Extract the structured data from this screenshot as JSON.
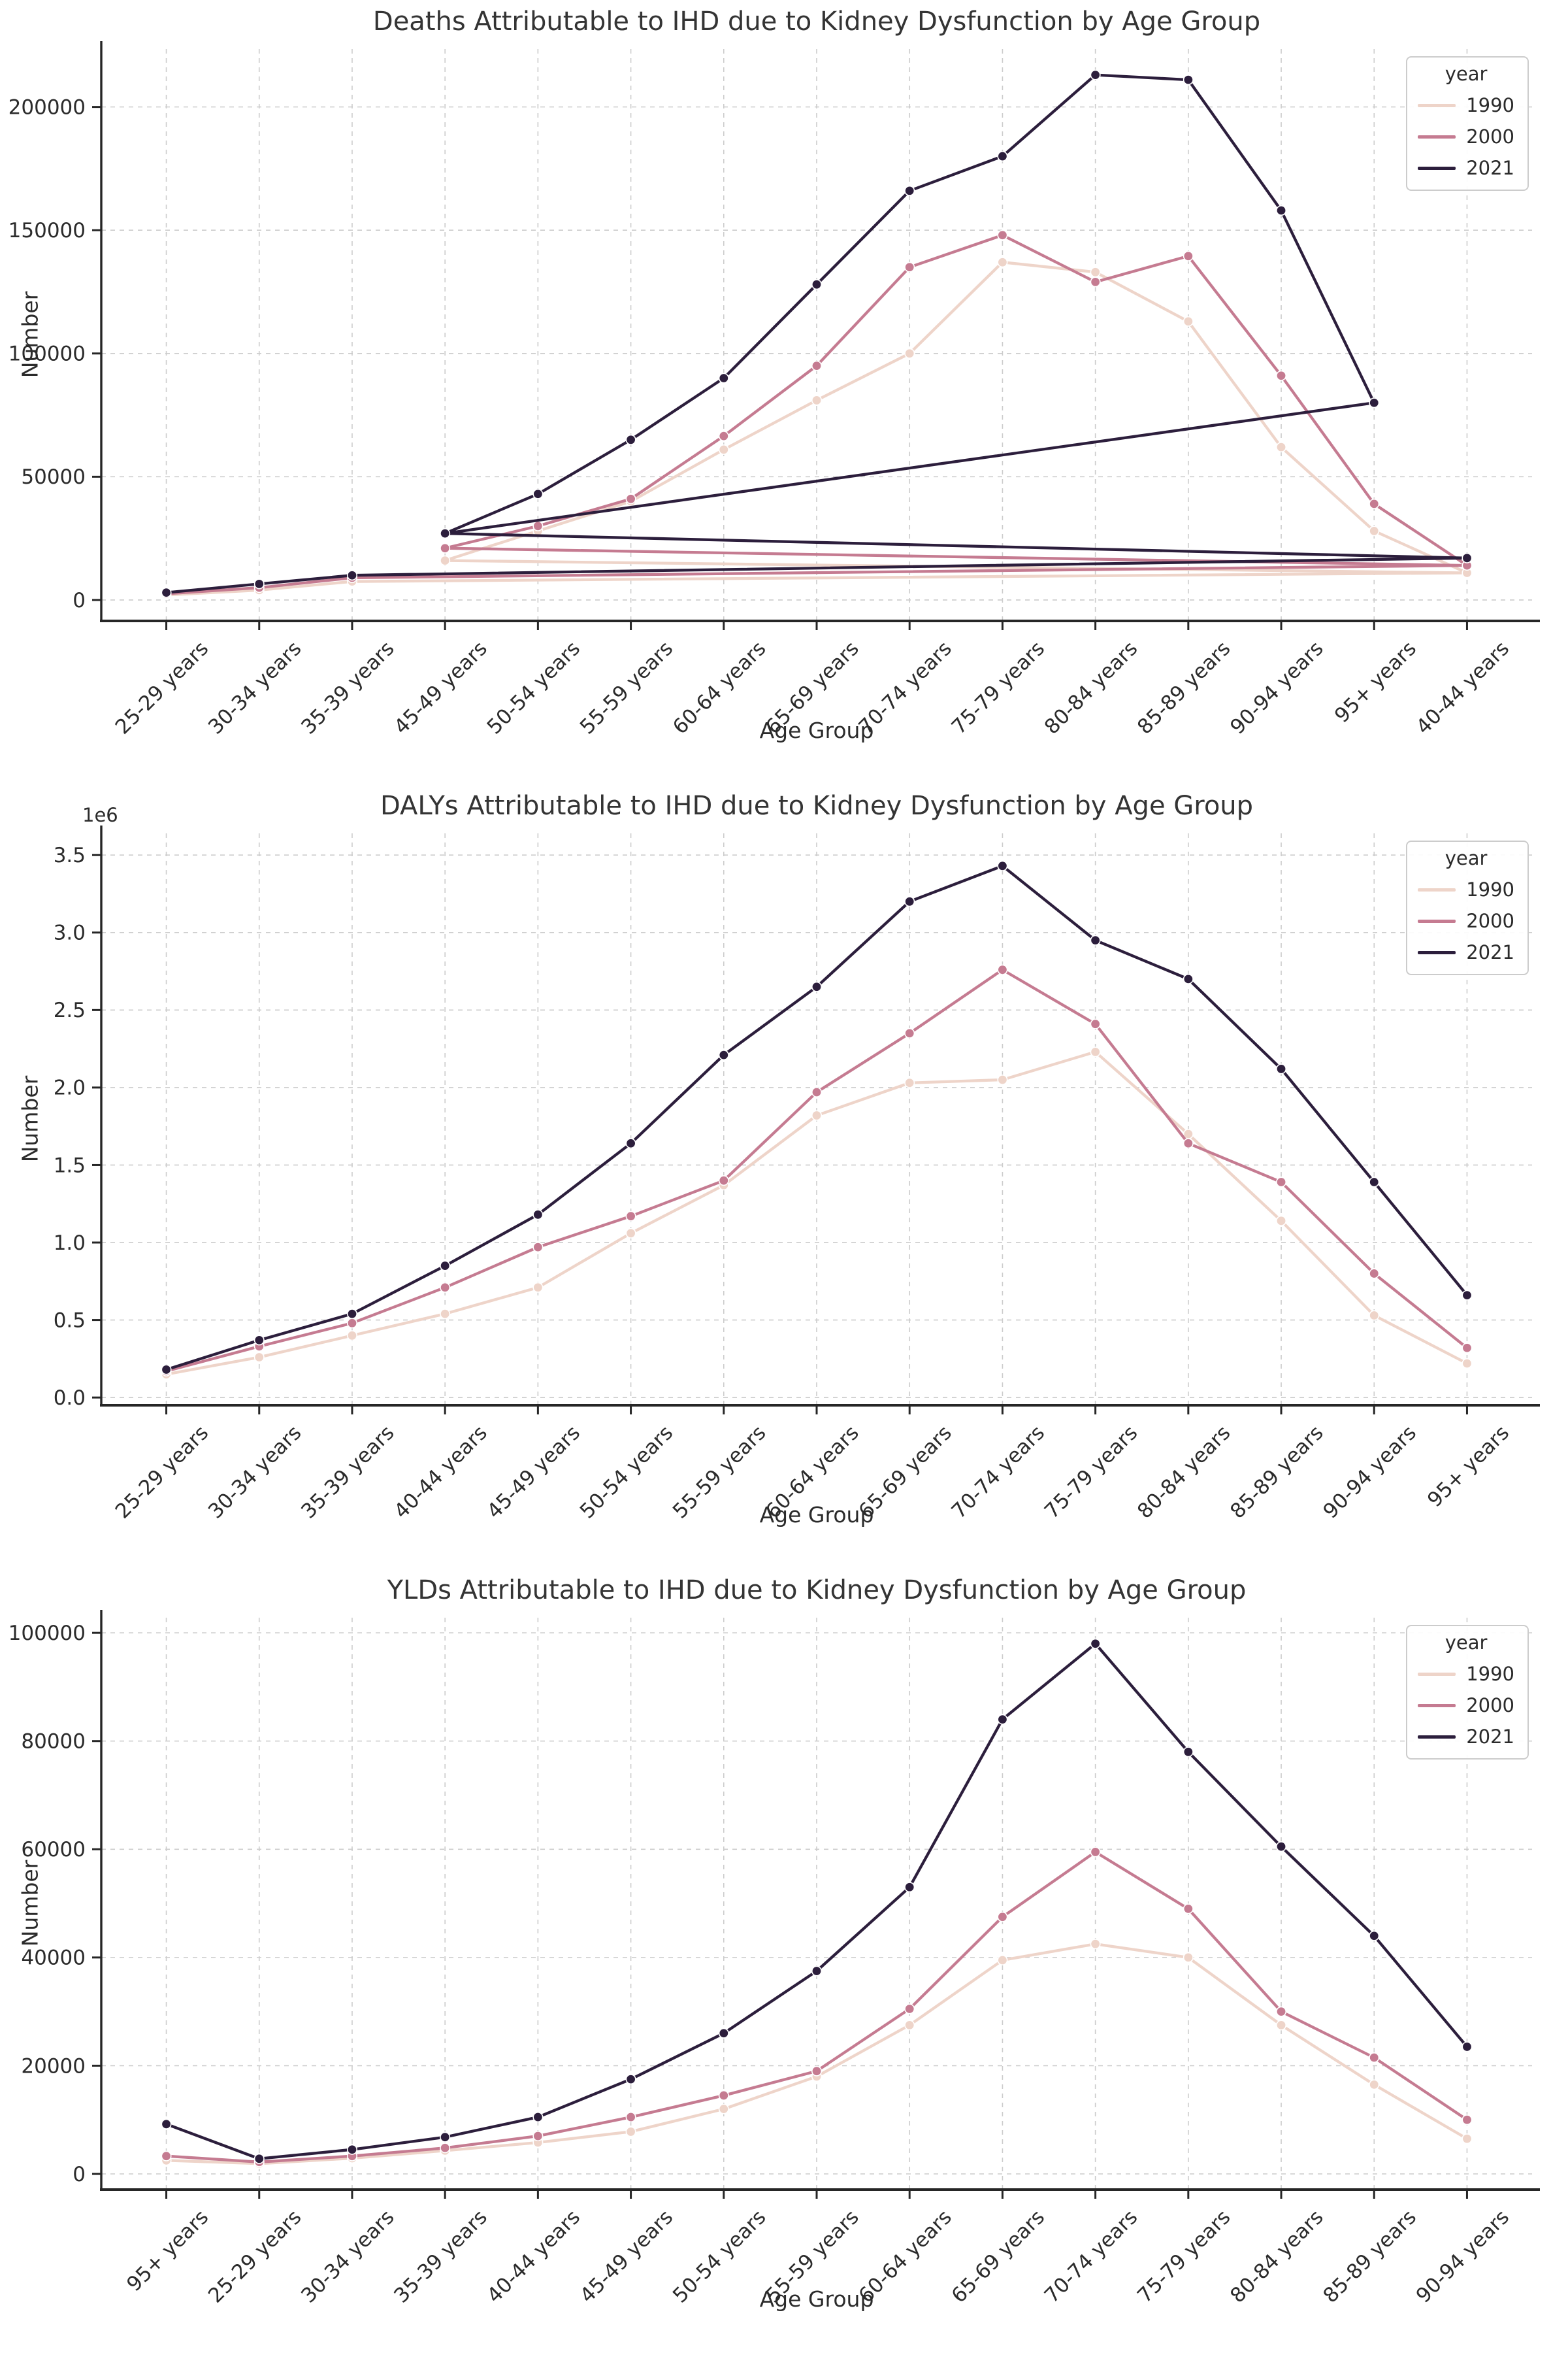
{
  "legend_title": "year",
  "colors": {
    "series_1990": "#eed4c9",
    "series_2000": "#c57b91",
    "series_2021": "#2c1e3c",
    "grid": "#cccccc",
    "spine": "#262626",
    "text": "#2b2b2b",
    "title": "#343434",
    "background": "#ffffff"
  },
  "chart_data": [
    {
      "type": "line",
      "title": "Deaths Attributable to IHD due to Kidney Dysfunction by Age Group",
      "xlabel": "Age Group",
      "ylabel": "Number",
      "y_offset_label": "",
      "grid": true,
      "legend_position": "upper right",
      "categories": [
        "25-29 years",
        "30-34 years",
        "35-39 years",
        "45-49 years",
        "50-54 years",
        "55-59 years",
        "60-64 years",
        "65-69 years",
        "70-74 years",
        "75-79 years",
        "80-84 years",
        "85-89 years",
        "90-94 years",
        "95+ years",
        "40-44 years"
      ],
      "y_ticks": [
        "0",
        "50000",
        "100000",
        "150000",
        "200000"
      ],
      "y_tick_values": [
        0,
        50000,
        100000,
        150000,
        200000
      ],
      "ylim": [
        -8500,
        223500
      ],
      "series": [
        {
          "name": "1990",
          "color_key": "series_1990",
          "values": [
            2000,
            4000,
            7500,
            16000,
            28000,
            40000,
            61000,
            81000,
            100000,
            137000,
            133000,
            113000,
            62000,
            28000,
            11000
          ],
          "path": [
            0,
            1,
            2,
            14,
            3,
            4,
            5,
            6,
            7,
            8,
            9,
            10,
            11,
            12,
            13,
            14
          ]
        },
        {
          "name": "2000",
          "color_key": "series_2000",
          "values": [
            2500,
            5000,
            9000,
            21000,
            30000,
            41000,
            66500,
            95000,
            135000,
            148000,
            129000,
            139500,
            91000,
            39000,
            14000
          ],
          "path": [
            0,
            1,
            2,
            14,
            3,
            4,
            5,
            6,
            7,
            8,
            9,
            10,
            11,
            12,
            13,
            14
          ]
        },
        {
          "name": "2021",
          "color_key": "series_2021",
          "values": [
            3000,
            6500,
            10000,
            27000,
            43000,
            65000,
            90000,
            128000,
            166000,
            180000,
            213000,
            211000,
            158000,
            80000,
            17000
          ],
          "path": [
            0,
            1,
            2,
            14,
            3,
            13,
            12,
            11,
            10,
            9,
            8,
            7,
            6,
            5,
            4,
            3
          ]
        }
      ]
    },
    {
      "type": "line",
      "title": "DALYs Attributable to IHD due to Kidney Dysfunction by Age Group",
      "xlabel": "Age Group",
      "ylabel": "Number",
      "y_offset_label": "1e6",
      "grid": true,
      "legend_position": "upper right",
      "categories": [
        "25-29 years",
        "30-34 years",
        "35-39 years",
        "40-44 years",
        "45-49 years",
        "50-54 years",
        "55-59 years",
        "60-64 years",
        "65-69 years",
        "70-74 years",
        "75-79 years",
        "80-84 years",
        "85-89 years",
        "90-94 years",
        "95+ years"
      ],
      "y_ticks": [
        "0.0",
        "0.5",
        "1.0",
        "1.5",
        "2.0",
        "2.5",
        "3.0",
        "3.5"
      ],
      "y_tick_values": [
        0,
        0.5,
        1,
        1.5,
        2,
        2.5,
        3,
        3.5
      ],
      "ylim": [
        -0.05,
        3.64
      ],
      "series": [
        {
          "name": "1990",
          "color_key": "series_1990",
          "values": [
            0.15,
            0.26,
            0.4,
            0.54,
            0.71,
            1.06,
            1.37,
            1.82,
            2.03,
            2.05,
            2.23,
            1.7,
            1.14,
            0.53,
            0.22
          ],
          "path": [
            0,
            1,
            2,
            3,
            4,
            5,
            6,
            7,
            8,
            9,
            10,
            11,
            12,
            13,
            14
          ]
        },
        {
          "name": "2000",
          "color_key": "series_2000",
          "values": [
            0.17,
            0.33,
            0.48,
            0.71,
            0.97,
            1.17,
            1.4,
            1.97,
            2.35,
            2.76,
            2.41,
            1.64,
            1.39,
            0.8,
            0.32
          ],
          "path": [
            0,
            1,
            2,
            3,
            4,
            5,
            6,
            7,
            8,
            9,
            10,
            11,
            12,
            13,
            14
          ]
        },
        {
          "name": "2021",
          "color_key": "series_2021",
          "values": [
            0.18,
            0.37,
            0.54,
            0.85,
            1.18,
            1.64,
            2.21,
            2.65,
            3.2,
            3.43,
            2.95,
            2.7,
            2.12,
            1.39,
            0.66
          ],
          "path": [
            0,
            1,
            2,
            3,
            4,
            5,
            6,
            7,
            8,
            9,
            10,
            11,
            12,
            13,
            14
          ]
        }
      ]
    },
    {
      "type": "line",
      "title": "YLDs Attributable to IHD due to Kidney Dysfunction by Age Group",
      "xlabel": "Age Group",
      "ylabel": "Number",
      "y_offset_label": "",
      "grid": true,
      "legend_position": "upper right",
      "categories": [
        "95+ years",
        "25-29 years",
        "30-34 years",
        "35-39 years",
        "40-44 years",
        "45-49 years",
        "50-54 years",
        "55-59 years",
        "60-64 years",
        "65-69 years",
        "70-74 years",
        "75-79 years",
        "80-84 years",
        "85-89 years",
        "90-94 years"
      ],
      "y_ticks": [
        "0",
        "20000",
        "40000",
        "60000",
        "80000",
        "100000"
      ],
      "y_tick_values": [
        0,
        20000,
        40000,
        60000,
        80000,
        100000
      ],
      "ylim": [
        -2900,
        102800
      ],
      "series": [
        {
          "name": "1990",
          "color_key": "series_1990",
          "values": [
            2500,
            1900,
            2900,
            4300,
            5800,
            7800,
            12000,
            18000,
            27500,
            39500,
            42500,
            40000,
            27500,
            16500,
            6500
          ],
          "path": [
            0,
            1,
            2,
            3,
            4,
            5,
            6,
            7,
            8,
            9,
            10,
            11,
            12,
            13,
            14
          ]
        },
        {
          "name": "2000",
          "color_key": "series_2000",
          "values": [
            3300,
            2200,
            3300,
            4800,
            7000,
            10500,
            14500,
            19000,
            30500,
            47500,
            59500,
            49000,
            30000,
            21500,
            10000
          ],
          "path": [
            0,
            1,
            2,
            3,
            4,
            5,
            6,
            7,
            8,
            9,
            10,
            11,
            12,
            13,
            14
          ]
        },
        {
          "name": "2021",
          "color_key": "series_2021",
          "values": [
            9200,
            2800,
            4500,
            6800,
            10500,
            17500,
            26000,
            37500,
            53000,
            84000,
            98000,
            78000,
            60500,
            44000,
            23500
          ],
          "path": [
            0,
            1,
            2,
            3,
            4,
            5,
            6,
            7,
            8,
            9,
            10,
            11,
            12,
            13,
            14
          ]
        }
      ]
    }
  ]
}
